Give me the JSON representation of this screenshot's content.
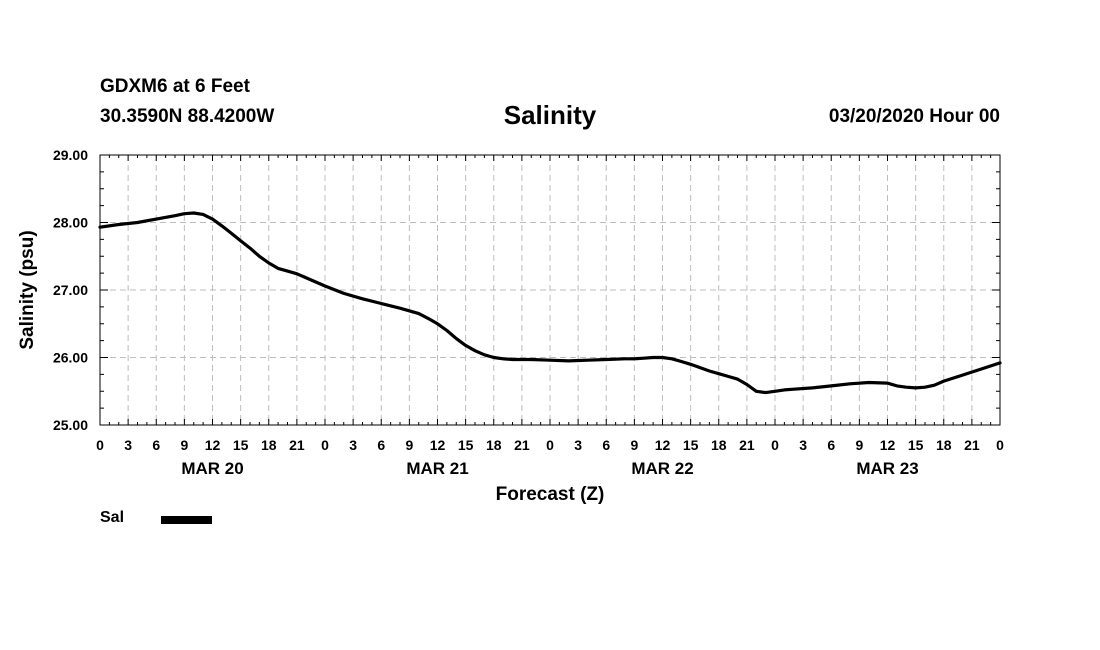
{
  "header": {
    "station": "GDXM6 at 6 Feet",
    "coordinates": "30.3590N 88.4200W",
    "title": "Salinity",
    "datetime": "03/20/2020 Hour 00"
  },
  "legend": {
    "label": "Sal",
    "color": "#000000"
  },
  "chart_data": {
    "type": "line",
    "title": "Salinity",
    "xlabel": "Forecast (Z)",
    "ylabel": "Salinity (psu)",
    "xlim": [
      0,
      96
    ],
    "ylim": [
      25.0,
      29.0
    ],
    "y_ticks": [
      "25.00",
      "26.00",
      "27.00",
      "28.00",
      "29.00"
    ],
    "x_tick_labels": [
      "0",
      "3",
      "6",
      "9",
      "12",
      "15",
      "18",
      "21",
      "0",
      "3",
      "6",
      "9",
      "12",
      "15",
      "18",
      "21",
      "0",
      "3",
      "6",
      "9",
      "12",
      "15",
      "18",
      "21",
      "0",
      "3",
      "6",
      "9",
      "12",
      "15",
      "18",
      "21",
      "0"
    ],
    "day_labels": [
      "MAR 20",
      "MAR 21",
      "MAR 22",
      "MAR 23"
    ],
    "grid": true,
    "series": [
      {
        "name": "Sal",
        "color": "#000000",
        "x": [
          0,
          2,
          4,
          6,
          8,
          9,
          10,
          11,
          12,
          13,
          14,
          15,
          16,
          17,
          18,
          19,
          20,
          21,
          22,
          24,
          26,
          28,
          30,
          32,
          34,
          35,
          36,
          37,
          38,
          39,
          40,
          41,
          42,
          43,
          44,
          46,
          48,
          50,
          52,
          54,
          56,
          57,
          58,
          59,
          60,
          61,
          62,
          63,
          64,
          65,
          66,
          67,
          68,
          69,
          70,
          71,
          72,
          73,
          74,
          76,
          78,
          80,
          82,
          84,
          85,
          86,
          87,
          88,
          89,
          90,
          92,
          94,
          96
        ],
        "values": [
          27.93,
          27.97,
          28.0,
          28.05,
          28.1,
          28.13,
          28.14,
          28.12,
          28.05,
          27.95,
          27.84,
          27.73,
          27.62,
          27.5,
          27.4,
          27.32,
          27.28,
          27.24,
          27.18,
          27.06,
          26.95,
          26.87,
          26.8,
          26.73,
          26.65,
          26.58,
          26.5,
          26.4,
          26.28,
          26.18,
          26.1,
          26.04,
          26.0,
          25.98,
          25.97,
          25.97,
          25.96,
          25.95,
          25.96,
          25.97,
          25.98,
          25.98,
          25.99,
          26.0,
          26.0,
          25.98,
          25.94,
          25.9,
          25.85,
          25.8,
          25.76,
          25.72,
          25.68,
          25.6,
          25.5,
          25.48,
          25.5,
          25.52,
          25.53,
          25.55,
          25.58,
          25.61,
          25.63,
          25.62,
          25.58,
          25.56,
          25.55,
          25.56,
          25.59,
          25.65,
          25.74,
          25.83,
          25.92
        ]
      }
    ]
  }
}
